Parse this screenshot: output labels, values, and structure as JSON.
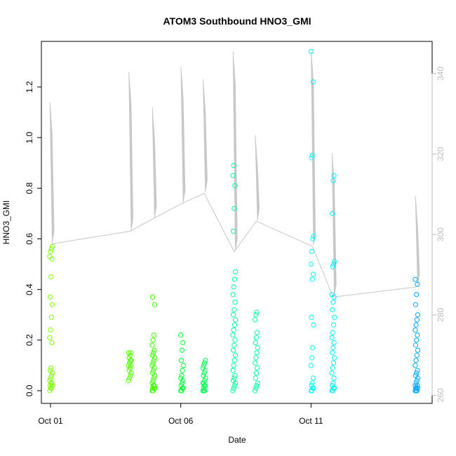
{
  "chart_data": {
    "type": "scatter",
    "title": "ATOM3 Southbound HNO3_GMI",
    "xlabel": "Date",
    "ylabel": "HNO3_GMI",
    "x_ticks": [
      {
        "label": "Oct 01",
        "day": 1
      },
      {
        "label": "Oct 06",
        "day": 6
      },
      {
        "label": "Oct 11",
        "day": 11
      }
    ],
    "y_ticks": [
      "0.0",
      "0.2",
      "0.4",
      "0.6",
      "0.8",
      "1.0",
      "1.2"
    ],
    "y2_ticks": [
      "260",
      "280",
      "300",
      "320",
      "340"
    ],
    "xlim_days": [
      0.65,
      15.65
    ],
    "ylim": [
      -0.05,
      1.38
    ],
    "y2lim": [
      258,
      348
    ],
    "secondary_line_color": "#c8c8c8",
    "grid": false,
    "legend": "none",
    "flights": [
      {
        "day": 1.02,
        "color": "#7FFF00",
        "hi": 1.14,
        "values": [
          0.0,
          0.01,
          0.01,
          0.02,
          0.02,
          0.03,
          0.03,
          0.04,
          0.05,
          0.06,
          0.07,
          0.08,
          0.09,
          0.19,
          0.21,
          0.24,
          0.29,
          0.34,
          0.37,
          0.45,
          0.52,
          0.53,
          0.55,
          0.56,
          0.57
        ]
      },
      {
        "day": 4.05,
        "color": "#55FF00",
        "hi": 1.26,
        "values": [
          0.04,
          0.05,
          0.06,
          0.07,
          0.08,
          0.09,
          0.1,
          0.1,
          0.11,
          0.12,
          0.12,
          0.13,
          0.14,
          0.15,
          0.15
        ]
      },
      {
        "day": 4.95,
        "color": "#3CFF00",
        "hi": 1.12,
        "values": [
          0.0,
          0.0,
          0.01,
          0.01,
          0.01,
          0.02,
          0.02,
          0.03,
          0.04,
          0.05,
          0.06,
          0.07,
          0.08,
          0.09,
          0.1,
          0.11,
          0.12,
          0.13,
          0.14,
          0.15,
          0.16,
          0.18,
          0.2,
          0.22,
          0.34,
          0.37
        ]
      },
      {
        "day": 6.05,
        "color": "#00FF33",
        "hi": 1.28,
        "values": [
          0.0,
          0.0,
          0.01,
          0.01,
          0.02,
          0.03,
          0.04,
          0.05,
          0.06,
          0.08,
          0.1,
          0.12,
          0.16,
          0.19,
          0.22
        ]
      },
      {
        "day": 6.9,
        "color": "#00FF55",
        "hi": 1.23,
        "values": [
          0.0,
          0.0,
          0.0,
          0.01,
          0.01,
          0.02,
          0.02,
          0.03,
          0.03,
          0.04,
          0.05,
          0.06,
          0.07,
          0.08,
          0.09,
          0.1,
          0.11,
          0.12
        ]
      },
      {
        "day": 8.05,
        "color": "#00FF99",
        "hi": 1.34,
        "values": [
          0.0,
          0.01,
          0.02,
          0.03,
          0.04,
          0.05,
          0.06,
          0.08,
          0.1,
          0.12,
          0.14,
          0.16,
          0.18,
          0.2,
          0.22,
          0.24,
          0.26,
          0.28,
          0.3,
          0.32,
          0.35,
          0.38,
          0.41,
          0.44,
          0.47,
          0.63,
          0.72,
          0.81,
          0.85,
          0.89
        ]
      },
      {
        "day": 8.9,
        "color": "#00FFAA",
        "hi": 1.01,
        "values": [
          0.0,
          0.01,
          0.02,
          0.03,
          0.05,
          0.07,
          0.09,
          0.11,
          0.13,
          0.15,
          0.17,
          0.19,
          0.21,
          0.23,
          0.28,
          0.3,
          0.31
        ]
      },
      {
        "day": 11.05,
        "color": "#00FFFF",
        "hi": 1.34,
        "values": [
          0.0,
          0.0,
          0.01,
          0.01,
          0.02,
          0.03,
          0.05,
          0.1,
          0.13,
          0.17,
          0.26,
          0.29,
          0.44,
          0.46,
          0.5,
          0.55,
          0.6,
          0.61,
          0.92,
          0.93,
          1.22,
          1.34
        ]
      },
      {
        "day": 11.85,
        "color": "#00F0FF",
        "hi": 0.94,
        "values": [
          0.0,
          0.0,
          0.01,
          0.01,
          0.02,
          0.03,
          0.05,
          0.07,
          0.09,
          0.11,
          0.13,
          0.15,
          0.17,
          0.19,
          0.21,
          0.23,
          0.26,
          0.29,
          0.32,
          0.35,
          0.37,
          0.38,
          0.49,
          0.5,
          0.51,
          0.7,
          0.83,
          0.85
        ]
      },
      {
        "day": 15.05,
        "color": "#00AAFF",
        "hi": 0.77,
        "values": [
          0.0,
          0.0,
          0.0,
          0.01,
          0.01,
          0.01,
          0.02,
          0.02,
          0.03,
          0.04,
          0.05,
          0.06,
          0.07,
          0.08,
          0.1,
          0.12,
          0.14,
          0.16,
          0.18,
          0.2,
          0.22,
          0.24,
          0.26,
          0.28,
          0.3,
          0.34,
          0.38,
          0.42,
          0.44
        ]
      }
    ],
    "connector_points": [
      [
        1.02,
        0.58
      ],
      [
        4.05,
        0.63
      ],
      [
        4.95,
        0.68
      ],
      [
        6.05,
        0.74
      ],
      [
        6.9,
        0.78
      ],
      [
        8.05,
        0.55
      ],
      [
        8.9,
        0.67
      ],
      [
        11.05,
        0.57
      ],
      [
        11.85,
        0.37
      ],
      [
        15.05,
        0.41
      ]
    ]
  }
}
